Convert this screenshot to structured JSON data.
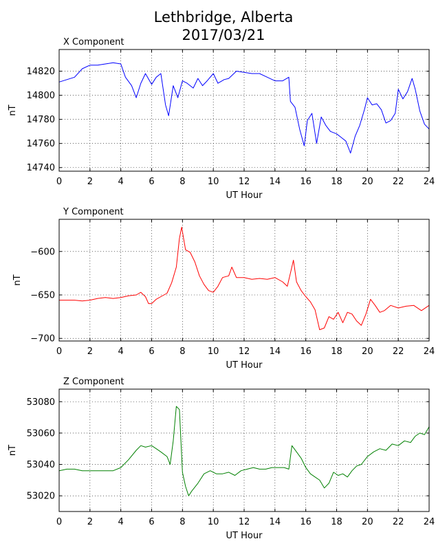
{
  "figure": {
    "title_line1": "Lethbridge, Alberta",
    "title_line2": "2017/03/21"
  },
  "chart_data": [
    {
      "type": "line",
      "title": "X Component",
      "xlabel": "UT Hour",
      "ylabel": "nT",
      "xlim": [
        0,
        24
      ],
      "ylim": [
        14737,
        14838
      ],
      "xticks": [
        0,
        2,
        4,
        6,
        8,
        10,
        12,
        14,
        16,
        18,
        20,
        22,
        24
      ],
      "yticks": [
        14740,
        14760,
        14780,
        14800,
        14820
      ],
      "grid": true,
      "color": "#0000ff",
      "x": [
        0,
        0.5,
        1,
        1.5,
        2,
        2.5,
        3,
        3.5,
        4,
        4.3,
        4.7,
        5,
        5.3,
        5.6,
        6,
        6.3,
        6.6,
        6.9,
        7.1,
        7.4,
        7.7,
        8,
        8.3,
        8.7,
        9,
        9.3,
        9.6,
        10,
        10.3,
        10.7,
        11,
        11.5,
        12,
        12.5,
        13,
        13.5,
        14,
        14.5,
        14.9,
        15,
        15.3,
        15.6,
        15.9,
        16.1,
        16.4,
        16.7,
        17,
        17.3,
        17.6,
        18,
        18.3,
        18.6,
        18.9,
        19.2,
        19.5,
        19.8,
        20,
        20.3,
        20.6,
        20.9,
        21.2,
        21.5,
        21.8,
        22,
        22.3,
        22.6,
        22.9,
        23.1,
        23.4,
        23.7,
        24
      ],
      "y": [
        14811,
        14813,
        14815,
        14822,
        14825,
        14825,
        14826,
        14827,
        14826,
        14815,
        14808,
        14798,
        14810,
        14818,
        14809,
        14815,
        14818,
        14792,
        14783,
        14808,
        14798,
        14812,
        14810,
        14806,
        14814,
        14808,
        14812,
        14818,
        14810,
        14813,
        14814,
        14820,
        14819,
        14818,
        14818,
        14815,
        14812,
        14812,
        14815,
        14795,
        14790,
        14772,
        14758,
        14779,
        14785,
        14760,
        14782,
        14775,
        14770,
        14768,
        14765,
        14762,
        14752,
        14766,
        14775,
        14788,
        14798,
        14792,
        14793,
        14788,
        14777,
        14779,
        14785,
        14805,
        14797,
        14803,
        14814,
        14805,
        14787,
        14776,
        14772
      ]
    },
    {
      "type": "line",
      "title": "Y Component",
      "xlabel": "UT Hour",
      "ylabel": "nT",
      "xlim": [
        0,
        24
      ],
      "ylim": [
        -703,
        -563
      ],
      "xticks": [
        0,
        2,
        4,
        6,
        8,
        10,
        12,
        14,
        16,
        18,
        20,
        22,
        24
      ],
      "yticks": [
        -600,
        -650,
        -700
      ],
      "grid": true,
      "color": "#ff0000",
      "x": [
        0,
        0.5,
        1,
        1.5,
        2,
        2.5,
        3,
        3.5,
        4,
        4.5,
        5,
        5.3,
        5.6,
        5.8,
        6,
        6.3,
        6.6,
        7,
        7.3,
        7.6,
        7.8,
        7.95,
        8.2,
        8.5,
        8.8,
        9.1,
        9.4,
        9.7,
        10,
        10.3,
        10.6,
        11,
        11.2,
        11.5,
        12,
        12.5,
        13,
        13.5,
        14,
        14.5,
        14.8,
        15,
        15.2,
        15.4,
        15.7,
        16,
        16.3,
        16.6,
        16.9,
        17.2,
        17.5,
        17.8,
        18.1,
        18.4,
        18.7,
        19,
        19.3,
        19.6,
        19.9,
        20.2,
        20.5,
        20.8,
        21.1,
        21.5,
        22,
        22.5,
        23,
        23.5,
        24
      ],
      "y": [
        -656,
        -656,
        -656,
        -657,
        -656,
        -654,
        -653,
        -654,
        -653,
        -651,
        -650,
        -647,
        -652,
        -660,
        -660,
        -655,
        -652,
        -648,
        -636,
        -618,
        -585,
        -572,
        -598,
        -601,
        -612,
        -628,
        -638,
        -645,
        -647,
        -640,
        -630,
        -628,
        -618,
        -630,
        -630,
        -632,
        -631,
        -632,
        -630,
        -635,
        -640,
        -625,
        -610,
        -635,
        -645,
        -652,
        -658,
        -667,
        -690,
        -688,
        -675,
        -678,
        -670,
        -682,
        -670,
        -672,
        -680,
        -685,
        -672,
        -655,
        -662,
        -670,
        -668,
        -662,
        -665,
        -663,
        -662,
        -668,
        -662
      ]
    },
    {
      "type": "line",
      "title": "Z Component",
      "xlabel": "UT Hour",
      "ylabel": "nT",
      "xlim": [
        0,
        24
      ],
      "ylim": [
        53010,
        53088
      ],
      "xticks": [
        0,
        2,
        4,
        6,
        8,
        10,
        12,
        14,
        16,
        18,
        20,
        22,
        24
      ],
      "yticks": [
        53020,
        53040,
        53060,
        53080
      ],
      "grid": true,
      "color": "#008000",
      "x": [
        0,
        0.5,
        1,
        1.5,
        2,
        2.5,
        3,
        3.5,
        4,
        4.5,
        5,
        5.3,
        5.6,
        6,
        6.3,
        6.6,
        7,
        7.2,
        7.4,
        7.6,
        7.8,
        8,
        8.2,
        8.4,
        8.6,
        9,
        9.4,
        9.8,
        10.2,
        10.6,
        11,
        11.4,
        11.8,
        12.2,
        12.6,
        13,
        13.4,
        13.8,
        14.2,
        14.6,
        14.9,
        15.1,
        15.4,
        15.7,
        16,
        16.3,
        16.6,
        16.9,
        17.2,
        17.5,
        17.8,
        18.1,
        18.4,
        18.7,
        19,
        19.3,
        19.6,
        20,
        20.4,
        20.8,
        21.2,
        21.6,
        22,
        22.4,
        22.8,
        23.1,
        23.4,
        23.7,
        24
      ],
      "y": [
        53036,
        53037,
        53037,
        53036,
        53036,
        53036,
        53036,
        53036,
        53038,
        53043,
        53049,
        53052,
        53051,
        53052,
        53050,
        53048,
        53045,
        53040,
        53055,
        53077,
        53075,
        53035,
        53026,
        53020,
        53023,
        53028,
        53034,
        53036,
        53034,
        53034,
        53035,
        53033,
        53036,
        53037,
        53038,
        53037,
        53037,
        53038,
        53038,
        53038,
        53037,
        53052,
        53048,
        53044,
        53038,
        53034,
        53032,
        53030,
        53025,
        53028,
        53035,
        53033,
        53034,
        53032,
        53036,
        53039,
        53040,
        53045,
        53048,
        53050,
        53049,
        53053,
        53052,
        53055,
        53054,
        53058,
        53060,
        53059,
        53064
      ]
    }
  ]
}
